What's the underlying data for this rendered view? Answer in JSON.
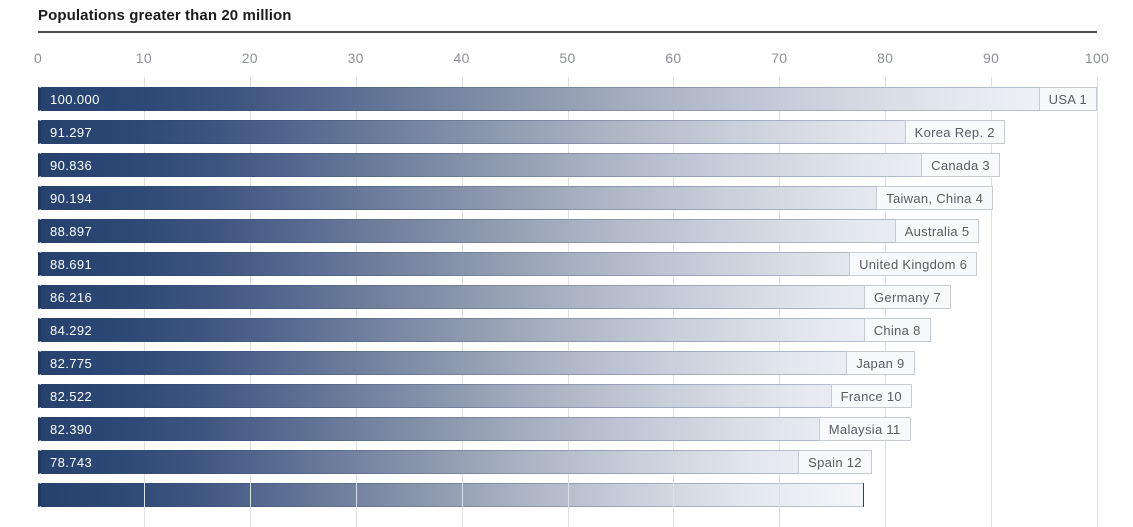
{
  "header": {
    "title": "Populations greater than 20 million"
  },
  "chart_data": {
    "type": "bar",
    "orientation": "horizontal",
    "title": "Populations greater than 20 million",
    "xlabel": "",
    "ylabel": "",
    "xlim": [
      0,
      100
    ],
    "x_ticks": [
      0,
      10,
      20,
      30,
      40,
      50,
      60,
      70,
      80,
      90,
      100
    ],
    "grid": "vertical gridlines every 10 units, drawn behind bars",
    "legend": "none",
    "bars": [
      {
        "rank": 1,
        "country": "USA",
        "label": "USA 1",
        "value": 100.0,
        "value_label": "100.000"
      },
      {
        "rank": 2,
        "country": "Korea Rep.",
        "label": "Korea Rep. 2",
        "value": 91.297,
        "value_label": "91.297"
      },
      {
        "rank": 3,
        "country": "Canada",
        "label": "Canada 3",
        "value": 90.836,
        "value_label": "90.836"
      },
      {
        "rank": 4,
        "country": "Taiwan, China",
        "label": "Taiwan, China 4",
        "value": 90.194,
        "value_label": "90.194"
      },
      {
        "rank": 5,
        "country": "Australia",
        "label": "Australia 5",
        "value": 88.897,
        "value_label": "88.897"
      },
      {
        "rank": 6,
        "country": "United Kingdom",
        "label": "United Kingdom 6",
        "value": 88.691,
        "value_label": "88.691"
      },
      {
        "rank": 7,
        "country": "Germany",
        "label": "Germany 7",
        "value": 86.216,
        "value_label": "86.216"
      },
      {
        "rank": 8,
        "country": "China",
        "label": "China 8",
        "value": 84.292,
        "value_label": "84.292"
      },
      {
        "rank": 9,
        "country": "Japan",
        "label": "Japan 9",
        "value": 82.775,
        "value_label": "82.775"
      },
      {
        "rank": 10,
        "country": "France",
        "label": "France 10",
        "value": 82.522,
        "value_label": "82.522"
      },
      {
        "rank": 11,
        "country": "Malaysia",
        "label": "Malaysia 11",
        "value": 82.39,
        "value_label": "82.390"
      },
      {
        "rank": 12,
        "country": "Spain",
        "label": "Spain 12",
        "value": 78.743,
        "value_label": "78.743"
      }
    ],
    "cutoff_next_bar": {
      "visible": true,
      "approx_width_pct": 78
    }
  },
  "style": {
    "bar_gradient_start": "#26416d",
    "bar_gradient_end": "#f4f6f9",
    "bar_left_edge": "#1d3862",
    "gridline_color": "#dcdfe3",
    "axis_text_color": "#8d9199",
    "country_text_color": "#585c63",
    "country_box_bg": "#f7f9fb",
    "country_box_border": "#c6cbd2",
    "value_text_color": "#ffffff",
    "title_color": "#1b1b1b",
    "rule_color": "#4e4e4e"
  }
}
